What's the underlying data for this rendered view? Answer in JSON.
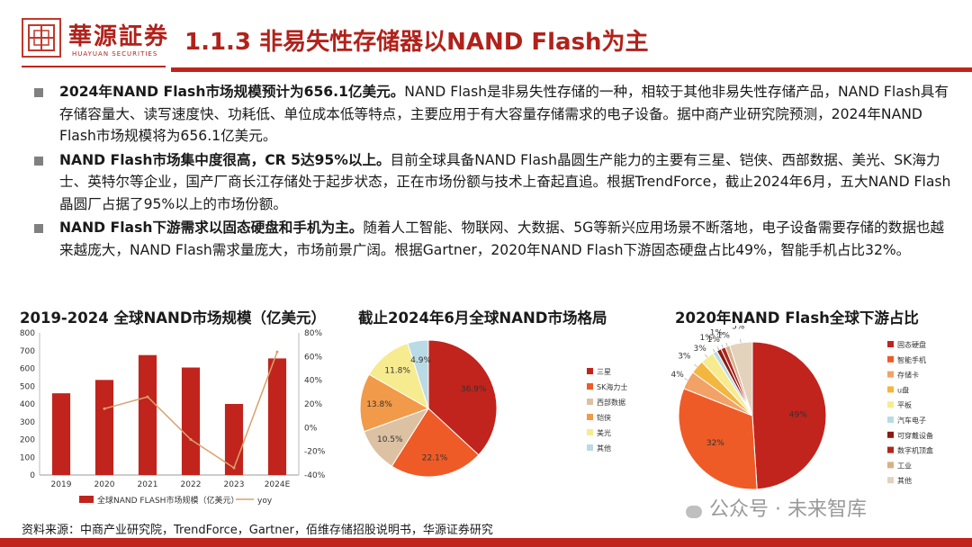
{
  "header": {
    "logo_cn": "華源証券",
    "logo_en": "HUAYUAN SECURITIES",
    "title": "1.1.3 非易失性存储器以NAND Flash为主"
  },
  "bullets": [
    {
      "lead": "2024年NAND Flash市场规模预计为656.1亿美元。",
      "body": "NAND Flash是非易失性存储的一种，相较于其他非易失性存储产品，NAND Flash具有存储容量大、读写速度快、功耗低、单位成本低等特点，主要应用于有大容量存储需求的电子设备。据中商产业研究院预测，2024年NAND Flash市场规模将为656.1亿美元。"
    },
    {
      "lead": "NAND Flash市场集中度很高，CR 5达95%以上。",
      "body": "目前全球具备NAND Flash晶圆生产能力的主要有三星、铠侠、西部数据、美光、SK海力士、英特尔等企业，国产厂商长江存储处于起步状态，正在市场份额与技术上奋起直追。根据TrendForce，截止2024年6月，五大NAND Flash晶圆厂占据了95%以上的市场份额。"
    },
    {
      "lead": "NAND Flash下游需求以固态硬盘和手机为主。",
      "body": "随着人工智能、物联网、大数据、5G等新兴应用场景不断落地，电子设备需要存储的数据也越来越庞大，NAND Flash需求量庞大，市场前景广阔。根据Gartner，2020年NAND Flash下游固态硬盘占比49%，智能手机占比32%。"
    }
  ],
  "chart_data": [
    {
      "type": "bar",
      "title": "2019-2024 全球NAND市场规模（亿美元）",
      "categories": [
        "2019",
        "2020",
        "2021",
        "2022",
        "2023",
        "2024E"
      ],
      "series": [
        {
          "name": "全球NAND FLASH市场规模（亿美元）",
          "type": "bar",
          "axis": "left",
          "color": "#c0241d",
          "values": [
            460,
            535,
            675,
            605,
            400,
            656.1
          ]
        },
        {
          "name": "yoy",
          "type": "line",
          "axis": "right",
          "color": "#d9a26b",
          "values": [
            null,
            16,
            26,
            -10,
            -34,
            64
          ]
        }
      ],
      "ylim": [
        0,
        800
      ],
      "yticks": [
        "0",
        "100",
        "200",
        "300",
        "400",
        "500",
        "600",
        "700",
        "800"
      ],
      "y2lim": [
        -40,
        80
      ],
      "y2ticks": [
        "-40%",
        "-20%",
        "0%",
        "20%",
        "40%",
        "60%",
        "80%"
      ],
      "legend": "bottom"
    },
    {
      "type": "pie",
      "title": "截止2024年6月全球NAND市场格局",
      "labels": [
        "三星",
        "SK海力士",
        "西部数据",
        "铠侠",
        "美光",
        "其他"
      ],
      "values": [
        36.9,
        22.1,
        10.5,
        13.8,
        11.8,
        4.9
      ],
      "value_labels": [
        "36.9%",
        "22.1%",
        "10.5%",
        "13.8%",
        "11.8%",
        "4.9%"
      ],
      "colors": [
        "#c0241d",
        "#ee5b27",
        "#dcc1a3",
        "#f19a4a",
        "#f7eb8f",
        "#b9dbe5"
      ],
      "legend": "right"
    },
    {
      "type": "pie",
      "title": "2020年NAND Flash全球下游占比",
      "labels": [
        "固态硬盘",
        "智能手机",
        "存储卡",
        "u盘",
        "平板",
        "汽车电子",
        "可穿戴设备",
        "数字机顶盒",
        "工业",
        "其他"
      ],
      "values": [
        49,
        32,
        4,
        3,
        3,
        1,
        1,
        1,
        1,
        5
      ],
      "value_labels": [
        "49%",
        "32%",
        "4%",
        "3%",
        "3%",
        "1%",
        "1%",
        "1%",
        "1%",
        "5%"
      ],
      "colors": [
        "#c0241d",
        "#ee5b27",
        "#f2a266",
        "#f3b63f",
        "#f7eb8f",
        "#b9dbe5",
        "#8b1a10",
        "#b0261c",
        "#d5b18b",
        "#e3d2bc"
      ],
      "legend": "right"
    }
  ],
  "footer": {
    "source": "资料来源：中商产业研究院，TrendForce，Gartner，佰维存储招股说明书，华源证券研究",
    "watermark": "公众号 · 未来智库"
  }
}
